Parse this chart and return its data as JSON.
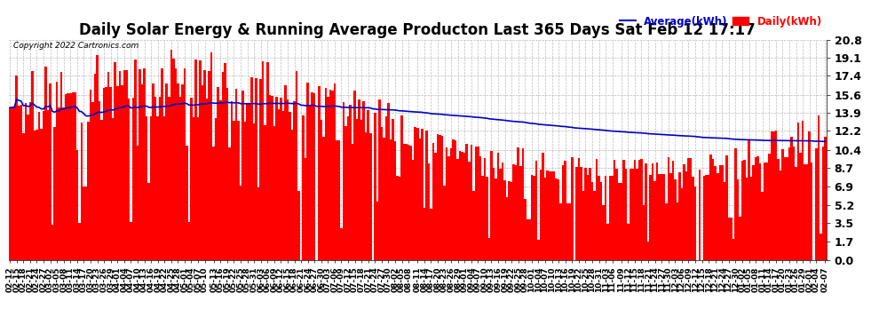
{
  "title": "Daily Solar Energy & Running Average Producton Last 365 Days Sat Feb 12 17:17",
  "copyright_text": "Copyright 2022 Cartronics.com",
  "legend_avg": "Average(kWh)",
  "legend_daily": "Daily(kWh)",
  "yticks": [
    0.0,
    1.7,
    3.5,
    5.2,
    6.9,
    8.7,
    10.4,
    12.2,
    13.9,
    15.6,
    17.4,
    19.1,
    20.8
  ],
  "ymax": 20.8,
  "bar_color": "#ff0000",
  "avg_color": "#0000cc",
  "background_color": "#ffffff",
  "grid_color": "#bbbbbb",
  "title_fontsize": 12,
  "avg_line_value": 11.1,
  "xtick_labels": [
    "02-12",
    "02-15",
    "02-18",
    "02-21",
    "02-24",
    "02-27",
    "03-02",
    "03-05",
    "03-08",
    "03-11",
    "03-14",
    "03-17",
    "03-20",
    "03-23",
    "03-26",
    "03-29",
    "04-01",
    "04-04",
    "04-07",
    "04-10",
    "04-13",
    "04-16",
    "04-19",
    "04-22",
    "04-25",
    "04-28",
    "05-01",
    "05-04",
    "05-07",
    "05-10",
    "05-13",
    "05-16",
    "05-19",
    "05-22",
    "05-25",
    "05-28",
    "05-31",
    "06-03",
    "06-06",
    "06-09",
    "06-12",
    "06-15",
    "06-18",
    "06-21",
    "06-24",
    "06-27",
    "06-30",
    "07-03",
    "07-06",
    "07-09",
    "07-12",
    "07-15",
    "07-18",
    "07-21",
    "07-24",
    "07-27",
    "07-30",
    "08-02",
    "08-05",
    "08-08",
    "08-11",
    "08-14",
    "08-17",
    "08-20",
    "08-23",
    "08-26",
    "08-29",
    "09-01",
    "09-04",
    "09-07",
    "09-10",
    "09-13",
    "09-16",
    "09-19",
    "09-22",
    "09-25",
    "09-28",
    "10-01",
    "10-04",
    "10-07",
    "10-10",
    "10-13",
    "10-16",
    "10-19",
    "10-22",
    "10-25",
    "10-28",
    "10-31",
    "11-03",
    "11-06",
    "11-09",
    "11-12",
    "11-15",
    "11-18",
    "11-21",
    "11-24",
    "11-27",
    "11-30",
    "12-03",
    "12-06",
    "12-09",
    "12-12",
    "12-15",
    "12-18",
    "12-21",
    "12-24",
    "12-27",
    "12-30",
    "01-02",
    "01-05",
    "01-08",
    "01-11",
    "01-14",
    "01-17",
    "01-20",
    "01-23",
    "01-26",
    "01-29",
    "02-01",
    "02-04",
    "02-07"
  ],
  "n_days": 365,
  "seed": 99
}
